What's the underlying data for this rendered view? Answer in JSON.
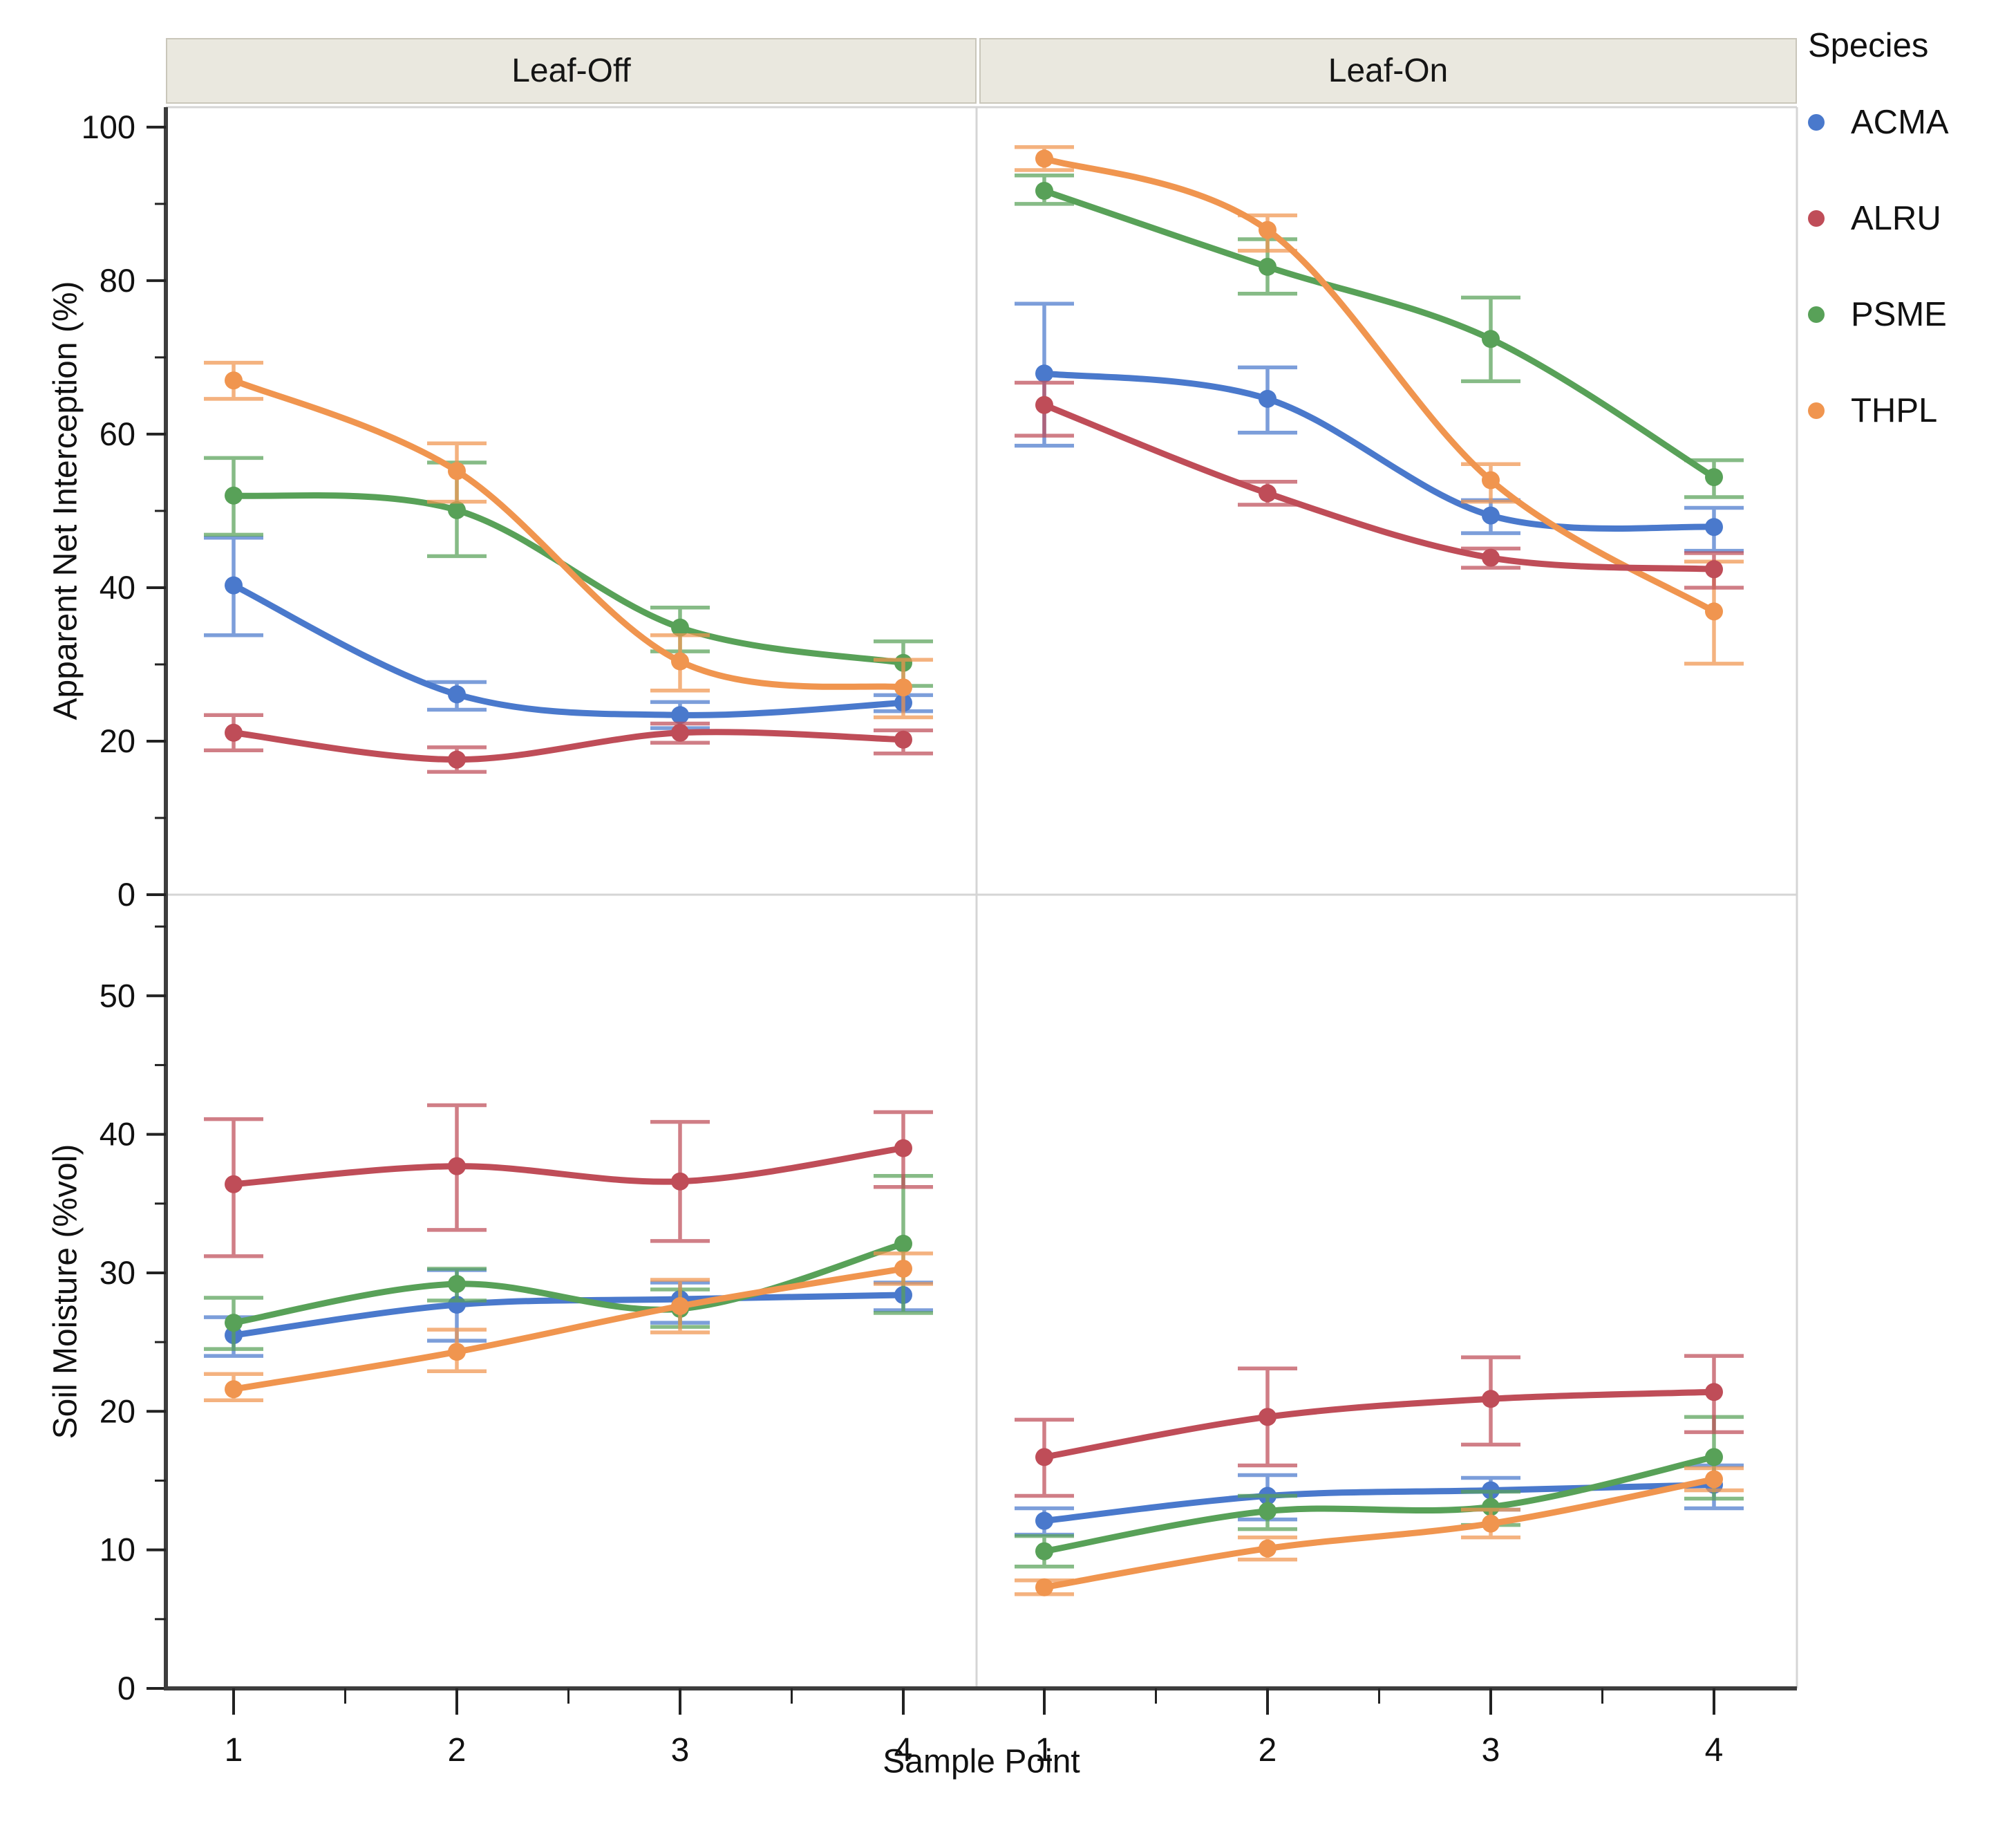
{
  "chart_data": {
    "type": "line",
    "facets": [
      "Leaf-Off",
      "Leaf-On"
    ],
    "x": {
      "label": "Sample Point",
      "categories": [
        "1",
        "2",
        "3",
        "4"
      ]
    },
    "rows": [
      {
        "id": "interception",
        "ylabel": "Apparent Net Interception (%)",
        "tick_values": [
          0,
          20,
          40,
          60,
          80,
          100
        ],
        "minor_step": 10,
        "ylim": [
          0,
          102.6
        ]
      },
      {
        "id": "soil_moisture",
        "ylabel": "Soil Moisture (%vol)",
        "tick_values": [
          0,
          10,
          20,
          30,
          40,
          50
        ],
        "minor_step": 5,
        "ylim": [
          0,
          57.3
        ]
      }
    ],
    "legend": {
      "title": "Species"
    },
    "series": [
      {
        "name": "ACMA",
        "color": "#4a79cc",
        "interception": {
          "leaf_off": {
            "y": [
              40.3,
              26.1,
              23.4,
              25.0
            ],
            "lo": [
              33.8,
              24.1,
              21.7,
              23.9
            ],
            "hi": [
              46.5,
              27.7,
              25.1,
              26.0
            ]
          },
          "leaf_on": {
            "y": [
              67.9,
              64.6,
              49.4,
              47.9
            ],
            "lo": [
              58.5,
              60.2,
              47.1,
              44.8
            ],
            "hi": [
              77.0,
              68.7,
              51.4,
              50.4
            ]
          }
        },
        "soil_moisture": {
          "leaf_off": {
            "y": [
              25.5,
              27.7,
              28.1,
              28.4
            ],
            "lo": [
              24.0,
              25.1,
              26.4,
              27.3
            ],
            "hi": [
              26.8,
              30.2,
              29.3,
              29.3
            ]
          },
          "leaf_on": {
            "y": [
              12.1,
              13.9,
              14.3,
              14.7
            ],
            "lo": [
              11.1,
              12.2,
              12.9,
              13.0
            ],
            "hi": [
              13.0,
              15.4,
              15.2,
              16.1
            ]
          }
        }
      },
      {
        "name": "ALRU",
        "color": "#bf4d58",
        "interception": {
          "leaf_off": {
            "y": [
              21.1,
              17.6,
              21.1,
              20.2
            ],
            "lo": [
              18.8,
              16.0,
              19.8,
              18.4
            ],
            "hi": [
              23.4,
              19.2,
              22.3,
              21.4
            ]
          },
          "leaf_on": {
            "y": [
              63.8,
              52.3,
              43.9,
              42.4
            ],
            "lo": [
              59.8,
              50.8,
              42.6,
              40.0
            ],
            "hi": [
              66.7,
              53.8,
              45.1,
              44.5
            ]
          }
        },
        "soil_moisture": {
          "leaf_off": {
            "y": [
              36.4,
              37.7,
              36.6,
              39.0
            ],
            "lo": [
              31.2,
              33.1,
              32.3,
              36.2
            ],
            "hi": [
              41.1,
              42.1,
              40.9,
              41.6
            ]
          },
          "leaf_on": {
            "y": [
              16.7,
              19.6,
              20.9,
              21.4
            ],
            "lo": [
              13.9,
              16.1,
              17.6,
              18.5
            ],
            "hi": [
              19.4,
              23.1,
              23.9,
              24.0
            ]
          }
        }
      },
      {
        "name": "PSME",
        "color": "#58a158",
        "interception": {
          "leaf_off": {
            "y": [
              52.0,
              50.1,
              34.8,
              30.2
            ],
            "lo": [
              46.9,
              44.1,
              31.7,
              27.2
            ],
            "hi": [
              56.9,
              56.3,
              37.4,
              33.0
            ]
          },
          "leaf_on": {
            "y": [
              91.7,
              81.8,
              72.4,
              54.4
            ],
            "lo": [
              90.0,
              78.3,
              66.9,
              51.8
            ],
            "hi": [
              93.7,
              85.4,
              77.8,
              56.6
            ]
          }
        },
        "soil_moisture": {
          "leaf_off": {
            "y": [
              26.4,
              29.2,
              27.4,
              32.1
            ],
            "lo": [
              24.5,
              28.0,
              26.1,
              27.1
            ],
            "hi": [
              28.2,
              30.3,
              28.8,
              37.0
            ]
          },
          "leaf_on": {
            "y": [
              9.9,
              12.8,
              13.1,
              16.7
            ],
            "lo": [
              8.8,
              11.5,
              11.8,
              13.7
            ],
            "hi": [
              11.0,
              13.9,
              14.2,
              19.6
            ]
          }
        }
      },
      {
        "name": "THPL",
        "color": "#f0954f",
        "interception": {
          "leaf_off": {
            "y": [
              67.0,
              55.2,
              30.4,
              27.0
            ],
            "lo": [
              64.6,
              51.2,
              26.6,
              23.1
            ],
            "hi": [
              69.3,
              58.8,
              33.8,
              30.6
            ]
          },
          "leaf_on": {
            "y": [
              95.9,
              86.6,
              54.0,
              36.9
            ],
            "lo": [
              94.4,
              83.9,
              51.2,
              30.1
            ],
            "hi": [
              97.4,
              88.5,
              56.1,
              43.4
            ]
          }
        },
        "soil_moisture": {
          "leaf_off": {
            "y": [
              21.6,
              24.3,
              27.6,
              30.3
            ],
            "lo": [
              20.8,
              22.9,
              25.7,
              29.2
            ],
            "hi": [
              22.7,
              25.9,
              29.5,
              31.4
            ]
          },
          "leaf_on": {
            "y": [
              7.3,
              10.1,
              11.9,
              15.1
            ],
            "lo": [
              6.8,
              9.3,
              10.9,
              14.3
            ],
            "hi": [
              7.8,
              10.9,
              12.9,
              15.9
            ]
          }
        }
      }
    ],
    "style": {
      "header_bg": "#eae8df",
      "header_border": "#c9c6ba",
      "panel_border": "#d5d5d5",
      "axis_color": "#3d3d3d",
      "tick_label_color": "#111111"
    }
  }
}
